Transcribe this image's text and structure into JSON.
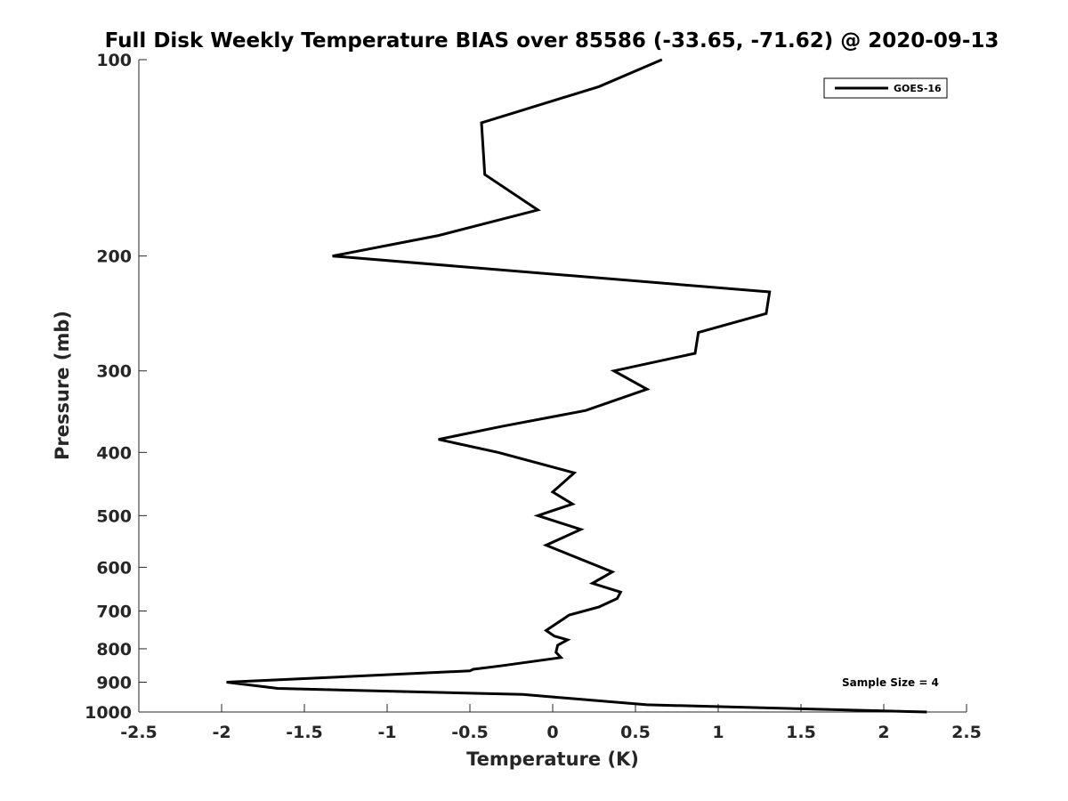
{
  "chart_data": {
    "type": "line",
    "title": "Full Disk Weekly Temperature BIAS over 85586 (-33.65, -71.62) @ 2020-09-13",
    "xlabel": "Temperature (K)",
    "ylabel": "Pressure (mb)",
    "xlim": [
      -2.5,
      2.5
    ],
    "ylim": [
      100,
      1000
    ],
    "y_scale": "log",
    "y_reversed": true,
    "xticks": [
      "-2.5",
      "-2",
      "-1.5",
      "-1",
      "-0.5",
      "0",
      "0.5",
      "1",
      "1.5",
      "2",
      "2.5"
    ],
    "yticks": [
      "100",
      "200",
      "300",
      "400",
      "500",
      "600",
      "700",
      "800",
      "900",
      "1000"
    ],
    "grid": false,
    "legend_position": "top-right",
    "annotation": "Sample Size = 4",
    "series": [
      {
        "name": "GOES-16",
        "color": "#000000",
        "points": [
          [
            0.66,
            100
          ],
          [
            0.28,
            110
          ],
          [
            -0.43,
            125
          ],
          [
            -0.41,
            150
          ],
          [
            -0.09,
            170
          ],
          [
            -0.69,
            186
          ],
          [
            -1.33,
            200
          ],
          [
            1.31,
            227
          ],
          [
            1.29,
            245
          ],
          [
            0.88,
            262
          ],
          [
            0.86,
            282
          ],
          [
            0.37,
            300
          ],
          [
            0.57,
            320
          ],
          [
            0.2,
            345
          ],
          [
            -0.31,
            365
          ],
          [
            -0.69,
            382
          ],
          [
            -0.33,
            400
          ],
          [
            0.13,
            430
          ],
          [
            0.0,
            460
          ],
          [
            0.12,
            480
          ],
          [
            -0.09,
            500
          ],
          [
            0.17,
            525
          ],
          [
            -0.04,
            555
          ],
          [
            0.36,
            610
          ],
          [
            0.24,
            635
          ],
          [
            0.41,
            655
          ],
          [
            0.39,
            670
          ],
          [
            0.28,
            690
          ],
          [
            0.1,
            710
          ],
          [
            -0.04,
            750
          ],
          [
            0.01,
            765
          ],
          [
            0.09,
            775
          ],
          [
            0.03,
            790
          ],
          [
            0.02,
            810
          ],
          [
            0.05,
            825
          ],
          [
            -0.32,
            850
          ],
          [
            -0.48,
            860
          ],
          [
            -0.5,
            865
          ],
          [
            -1.97,
            900
          ],
          [
            -1.66,
            920
          ],
          [
            -0.18,
            940
          ],
          [
            0.57,
            975
          ],
          [
            2.26,
            1000
          ]
        ]
      }
    ]
  }
}
